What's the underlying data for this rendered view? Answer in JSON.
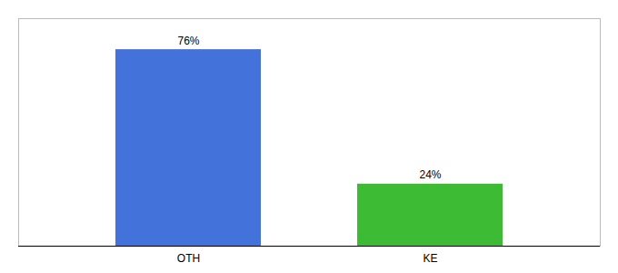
{
  "chart_data": {
    "type": "bar",
    "categories": [
      "OTH",
      "KE"
    ],
    "values": [
      76,
      24
    ],
    "colors": [
      "#4472db",
      "#3dbb35"
    ],
    "ylim": [
      0,
      88
    ],
    "data_labels": true,
    "value_labels": [
      "76%",
      "24%"
    ],
    "tick_labels": "x",
    "grid": false
  }
}
